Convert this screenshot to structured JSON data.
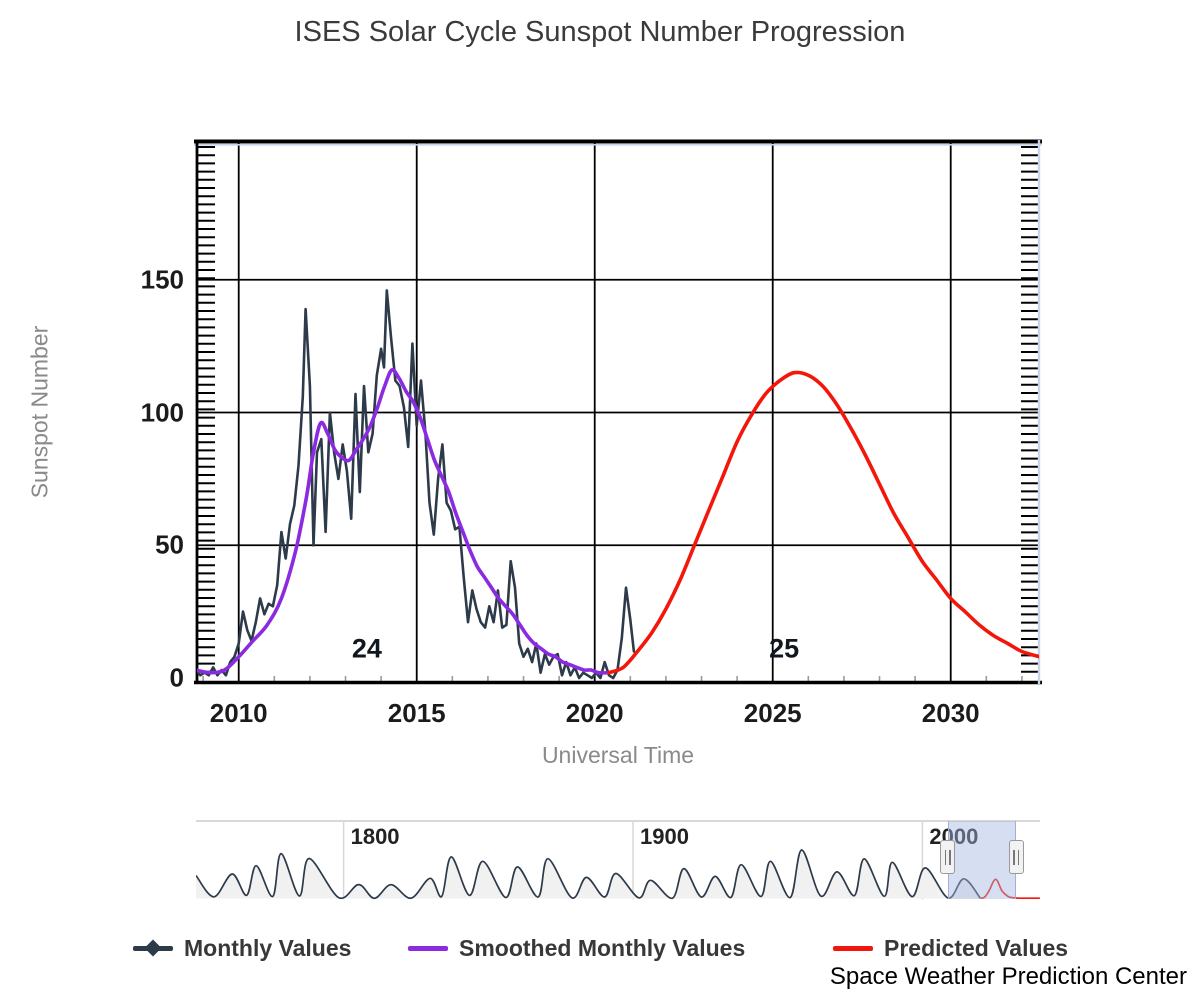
{
  "title": "ISES Solar Cycle Sunspot Number Progression",
  "credit": "Space Weather Prediction Center",
  "axes": {
    "y_label": "Sunspot Number",
    "x_label": "Universal Time",
    "y_ticks": [
      0,
      50,
      100,
      150
    ],
    "x_ticks": [
      2010,
      2015,
      2020,
      2025,
      2030
    ]
  },
  "legend": [
    {
      "label": "Monthly Values",
      "color": "#2d3a4a",
      "marker": "line-diamond"
    },
    {
      "label": "Smoothed Monthly Values",
      "color": "#8a2be2",
      "marker": "line"
    },
    {
      "label": "Predicted Values",
      "color": "#f3170b",
      "marker": "line"
    }
  ],
  "chart_data": {
    "type": "line",
    "title": "ISES Solar Cycle Sunspot Number Progression",
    "xlabel": "Universal Time",
    "ylabel": "Sunspot Number",
    "xlim": [
      2008.8,
      2032.5
    ],
    "ylim": [
      0,
      200
    ],
    "x_ticks": [
      2010,
      2015,
      2020,
      2025,
      2030
    ],
    "y_ticks": [
      0,
      50,
      100,
      150
    ],
    "grid": true,
    "legend_position": "bottom",
    "cycle_annotations": [
      {
        "label": "24",
        "x_year": 2013.6,
        "y_value": 11
      },
      {
        "label": "25",
        "x_year": 2025.32,
        "y_value": 11
      }
    ],
    "series": [
      {
        "name": "Monthly Values",
        "color": "#2d3a4a",
        "style": "jagged",
        "points": [
          [
            2008.8,
            3
          ],
          [
            2008.92,
            1
          ],
          [
            2009.04,
            2
          ],
          [
            2009.16,
            1
          ],
          [
            2009.28,
            4
          ],
          [
            2009.4,
            1
          ],
          [
            2009.52,
            3
          ],
          [
            2009.64,
            1
          ],
          [
            2009.76,
            6
          ],
          [
            2009.88,
            8
          ],
          [
            2010.0,
            13
          ],
          [
            2010.12,
            25
          ],
          [
            2010.24,
            18
          ],
          [
            2010.36,
            14
          ],
          [
            2010.48,
            21
          ],
          [
            2010.6,
            30
          ],
          [
            2010.72,
            24
          ],
          [
            2010.84,
            28
          ],
          [
            2010.96,
            27
          ],
          [
            2011.08,
            35
          ],
          [
            2011.2,
            55
          ],
          [
            2011.32,
            45
          ],
          [
            2011.44,
            58
          ],
          [
            2011.56,
            65
          ],
          [
            2011.68,
            80
          ],
          [
            2011.8,
            106
          ],
          [
            2011.88,
            139
          ],
          [
            2012.0,
            110
          ],
          [
            2012.1,
            50
          ],
          [
            2012.2,
            85
          ],
          [
            2012.32,
            90
          ],
          [
            2012.44,
            55
          ],
          [
            2012.56,
            100
          ],
          [
            2012.68,
            85
          ],
          [
            2012.8,
            75
          ],
          [
            2012.92,
            88
          ],
          [
            2013.04,
            78
          ],
          [
            2013.16,
            60
          ],
          [
            2013.28,
            107
          ],
          [
            2013.4,
            70
          ],
          [
            2013.52,
            110
          ],
          [
            2013.64,
            85
          ],
          [
            2013.76,
            92
          ],
          [
            2013.88,
            114
          ],
          [
            2014.0,
            124
          ],
          [
            2014.08,
            117
          ],
          [
            2014.16,
            146
          ],
          [
            2014.28,
            128
          ],
          [
            2014.4,
            112
          ],
          [
            2014.52,
            110
          ],
          [
            2014.64,
            102
          ],
          [
            2014.76,
            87
          ],
          [
            2014.88,
            126
          ],
          [
            2015.0,
            95
          ],
          [
            2015.12,
            112
          ],
          [
            2015.24,
            93
          ],
          [
            2015.36,
            66
          ],
          [
            2015.48,
            54
          ],
          [
            2015.6,
            75
          ],
          [
            2015.72,
            88
          ],
          [
            2015.84,
            66
          ],
          [
            2015.96,
            63
          ],
          [
            2016.08,
            56
          ],
          [
            2016.2,
            57
          ],
          [
            2016.32,
            38
          ],
          [
            2016.44,
            21
          ],
          [
            2016.56,
            33
          ],
          [
            2016.68,
            26
          ],
          [
            2016.8,
            21
          ],
          [
            2016.92,
            19
          ],
          [
            2017.04,
            27
          ],
          [
            2017.16,
            21
          ],
          [
            2017.28,
            33
          ],
          [
            2017.4,
            19
          ],
          [
            2017.52,
            20
          ],
          [
            2017.64,
            44
          ],
          [
            2017.76,
            34
          ],
          [
            2017.88,
            13
          ],
          [
            2018.0,
            8
          ],
          [
            2018.12,
            11
          ],
          [
            2018.24,
            6
          ],
          [
            2018.36,
            13
          ],
          [
            2018.48,
            2
          ],
          [
            2018.6,
            9
          ],
          [
            2018.72,
            5
          ],
          [
            2018.84,
            8
          ],
          [
            2018.96,
            9
          ],
          [
            2019.08,
            1
          ],
          [
            2019.2,
            6
          ],
          [
            2019.32,
            1
          ],
          [
            2019.44,
            4
          ],
          [
            2019.56,
            0
          ],
          [
            2019.68,
            2
          ],
          [
            2019.8,
            1
          ],
          [
            2019.92,
            0
          ],
          [
            2020.04,
            2
          ],
          [
            2020.16,
            0
          ],
          [
            2020.28,
            6
          ],
          [
            2020.4,
            1
          ],
          [
            2020.52,
            0
          ],
          [
            2020.64,
            3
          ],
          [
            2020.76,
            15
          ],
          [
            2020.88,
            34
          ],
          [
            2021.0,
            22
          ],
          [
            2021.1,
            10
          ]
        ]
      },
      {
        "name": "Smoothed Monthly Values",
        "color": "#8a2be2",
        "style": "smooth",
        "points": [
          [
            2008.8,
            3
          ],
          [
            2009.2,
            2
          ],
          [
            2009.6,
            3
          ],
          [
            2010.0,
            8
          ],
          [
            2010.4,
            14
          ],
          [
            2010.8,
            20
          ],
          [
            2011.2,
            30
          ],
          [
            2011.6,
            48
          ],
          [
            2011.9,
            68
          ],
          [
            2012.1,
            85
          ],
          [
            2012.3,
            96
          ],
          [
            2012.5,
            92
          ],
          [
            2012.7,
            86
          ],
          [
            2012.9,
            83
          ],
          [
            2013.1,
            82
          ],
          [
            2013.3,
            86
          ],
          [
            2013.5,
            90
          ],
          [
            2013.7,
            95
          ],
          [
            2013.9,
            102
          ],
          [
            2014.1,
            110
          ],
          [
            2014.3,
            116
          ],
          [
            2014.5,
            113
          ],
          [
            2014.7,
            108
          ],
          [
            2014.9,
            104
          ],
          [
            2015.1,
            98
          ],
          [
            2015.3,
            90
          ],
          [
            2015.5,
            82
          ],
          [
            2015.7,
            76
          ],
          [
            2015.9,
            70
          ],
          [
            2016.1,
            62
          ],
          [
            2016.3,
            55
          ],
          [
            2016.5,
            48
          ],
          [
            2016.7,
            42
          ],
          [
            2016.9,
            38
          ],
          [
            2017.1,
            34
          ],
          [
            2017.3,
            30
          ],
          [
            2017.5,
            27
          ],
          [
            2017.7,
            24
          ],
          [
            2017.9,
            20
          ],
          [
            2018.1,
            16
          ],
          [
            2018.3,
            13
          ],
          [
            2018.5,
            11
          ],
          [
            2018.7,
            9
          ],
          [
            2018.9,
            8
          ],
          [
            2019.1,
            6
          ],
          [
            2019.3,
            5
          ],
          [
            2019.5,
            4
          ],
          [
            2019.7,
            3
          ],
          [
            2019.9,
            3
          ],
          [
            2020.1,
            2
          ],
          [
            2020.4,
            2
          ]
        ]
      },
      {
        "name": "Predicted Values",
        "color": "#f3170b",
        "style": "smooth",
        "points": [
          [
            2020.4,
            2
          ],
          [
            2020.8,
            4
          ],
          [
            2021.2,
            10
          ],
          [
            2021.6,
            17
          ],
          [
            2022.0,
            26
          ],
          [
            2022.4,
            37
          ],
          [
            2022.8,
            50
          ],
          [
            2023.2,
            63
          ],
          [
            2023.6,
            76
          ],
          [
            2024.0,
            89
          ],
          [
            2024.4,
            99
          ],
          [
            2024.8,
            107
          ],
          [
            2025.2,
            112
          ],
          [
            2025.6,
            115
          ],
          [
            2026.0,
            114
          ],
          [
            2026.4,
            110
          ],
          [
            2026.8,
            103
          ],
          [
            2027.2,
            94
          ],
          [
            2027.6,
            84
          ],
          [
            2028.0,
            73
          ],
          [
            2028.4,
            62
          ],
          [
            2028.8,
            53
          ],
          [
            2029.2,
            44
          ],
          [
            2029.6,
            37
          ],
          [
            2030.0,
            30
          ],
          [
            2030.4,
            25
          ],
          [
            2030.8,
            20
          ],
          [
            2031.2,
            16
          ],
          [
            2031.6,
            13
          ],
          [
            2032.0,
            10
          ],
          [
            2032.5,
            8
          ]
        ]
      }
    ],
    "navigator": {
      "x_ticks": [
        "1800",
        "1900",
        "2000"
      ],
      "xlim": [
        1749,
        2040.6
      ],
      "selection": [
        2008.8,
        2032.5
      ],
      "historical_points": [
        [
          1749,
          135
        ],
        [
          1755.2,
          10
        ],
        [
          1761.5,
          144
        ],
        [
          1766.5,
          19
        ],
        [
          1769.8,
          193
        ],
        [
          1775.5,
          12
        ],
        [
          1778.4,
          264
        ],
        [
          1784.7,
          15
        ],
        [
          1788.1,
          235
        ],
        [
          1798.3,
          5
        ],
        [
          1805.2,
          82
        ],
        [
          1810.6,
          1
        ],
        [
          1816.4,
          81
        ],
        [
          1823.3,
          2
        ],
        [
          1829.9,
          119
        ],
        [
          1833.9,
          12
        ],
        [
          1837.2,
          245
        ],
        [
          1843.5,
          18
        ],
        [
          1848.1,
          219
        ],
        [
          1856.0,
          6
        ],
        [
          1860.1,
          186
        ],
        [
          1867.2,
          9
        ],
        [
          1870.6,
          234
        ],
        [
          1878.9,
          4
        ],
        [
          1883.9,
          124
        ],
        [
          1890.2,
          9
        ],
        [
          1894.1,
          147
        ],
        [
          1902.0,
          4
        ],
        [
          1906.1,
          107
        ],
        [
          1913.6,
          2
        ],
        [
          1917.6,
          176
        ],
        [
          1923.6,
          9
        ],
        [
          1928.4,
          130
        ],
        [
          1933.8,
          6
        ],
        [
          1937.4,
          199
        ],
        [
          1944.2,
          12
        ],
        [
          1947.5,
          219
        ],
        [
          1954.3,
          5
        ],
        [
          1958.3,
          285
        ],
        [
          1964.9,
          15
        ],
        [
          1970.5,
          157
        ],
        [
          1976.5,
          17
        ],
        [
          1979.9,
          233
        ],
        [
          1986.8,
          13
        ],
        [
          1989.6,
          213
        ],
        [
          1996.4,
          11
        ],
        [
          2001.0,
          180
        ],
        [
          2008.9,
          3
        ],
        [
          2014.3,
          116
        ],
        [
          2020.0,
          2
        ]
      ],
      "predicted_points": [
        [
          2020.0,
          2
        ],
        [
          2021.5,
          8
        ],
        [
          2023.0,
          45
        ],
        [
          2025.3,
          113
        ],
        [
          2027.5,
          45
        ],
        [
          2029.5,
          13
        ],
        [
          2031.0,
          5
        ],
        [
          2032.5,
          3
        ],
        [
          2034.0,
          2
        ],
        [
          2040.6,
          2
        ]
      ]
    }
  }
}
